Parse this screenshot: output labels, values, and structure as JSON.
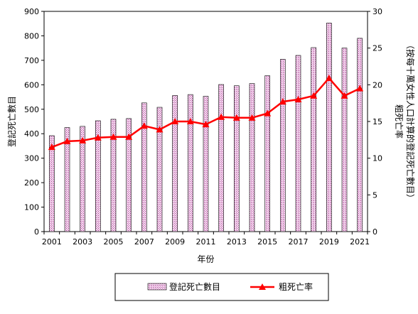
{
  "chart_data": {
    "type": "bar",
    "categories": [
      "2001",
      "2002",
      "2003",
      "2004",
      "2005",
      "2006",
      "2007",
      "2008",
      "2009",
      "2010",
      "2011",
      "2012",
      "2013",
      "2014",
      "2015",
      "2016",
      "2017",
      "2018",
      "2019",
      "2020",
      "2021"
    ],
    "x_tick_labels": [
      "2001",
      "2003",
      "2005",
      "2007",
      "2009",
      "2011",
      "2013",
      "2015",
      "2017",
      "2019",
      "2021"
    ],
    "xlabel": "年份",
    "ylabel": "登記死亡數目",
    "y2label_line1": "粗死亡率",
    "y2label_line2": "（按每十萬女性人口計算的登記死亡數目）",
    "ylim": [
      0,
      900
    ],
    "y_ticks": [
      "0",
      "100",
      "200",
      "300",
      "400",
      "500",
      "600",
      "700",
      "800",
      "900"
    ],
    "y2lim": [
      0,
      30
    ],
    "y2_ticks": [
      "0",
      "5",
      "10",
      "15",
      "20",
      "25",
      "30"
    ],
    "series": [
      {
        "name": "登記死亡數目",
        "kind": "bar",
        "axis": "left",
        "values": [
          392,
          425,
          430,
          453,
          459,
          462,
          526,
          508,
          556,
          560,
          553,
          601,
          596,
          605,
          637,
          704,
          720,
          752,
          852,
          750,
          790
        ]
      },
      {
        "name": "粗死亡率",
        "kind": "line",
        "axis": "right",
        "values": [
          11.5,
          12.3,
          12.4,
          12.8,
          12.9,
          12.9,
          14.4,
          13.9,
          15.0,
          15.0,
          14.6,
          15.6,
          15.5,
          15.5,
          16.1,
          17.7,
          18.0,
          18.5,
          20.9,
          18.5,
          19.5
        ]
      }
    ],
    "legend_placement": "bottom",
    "colors": {
      "bar_fill": "#f0c8e8",
      "bar_pattern": "#a05090",
      "bar_stroke": "#000000",
      "line": "#ff0000"
    }
  }
}
